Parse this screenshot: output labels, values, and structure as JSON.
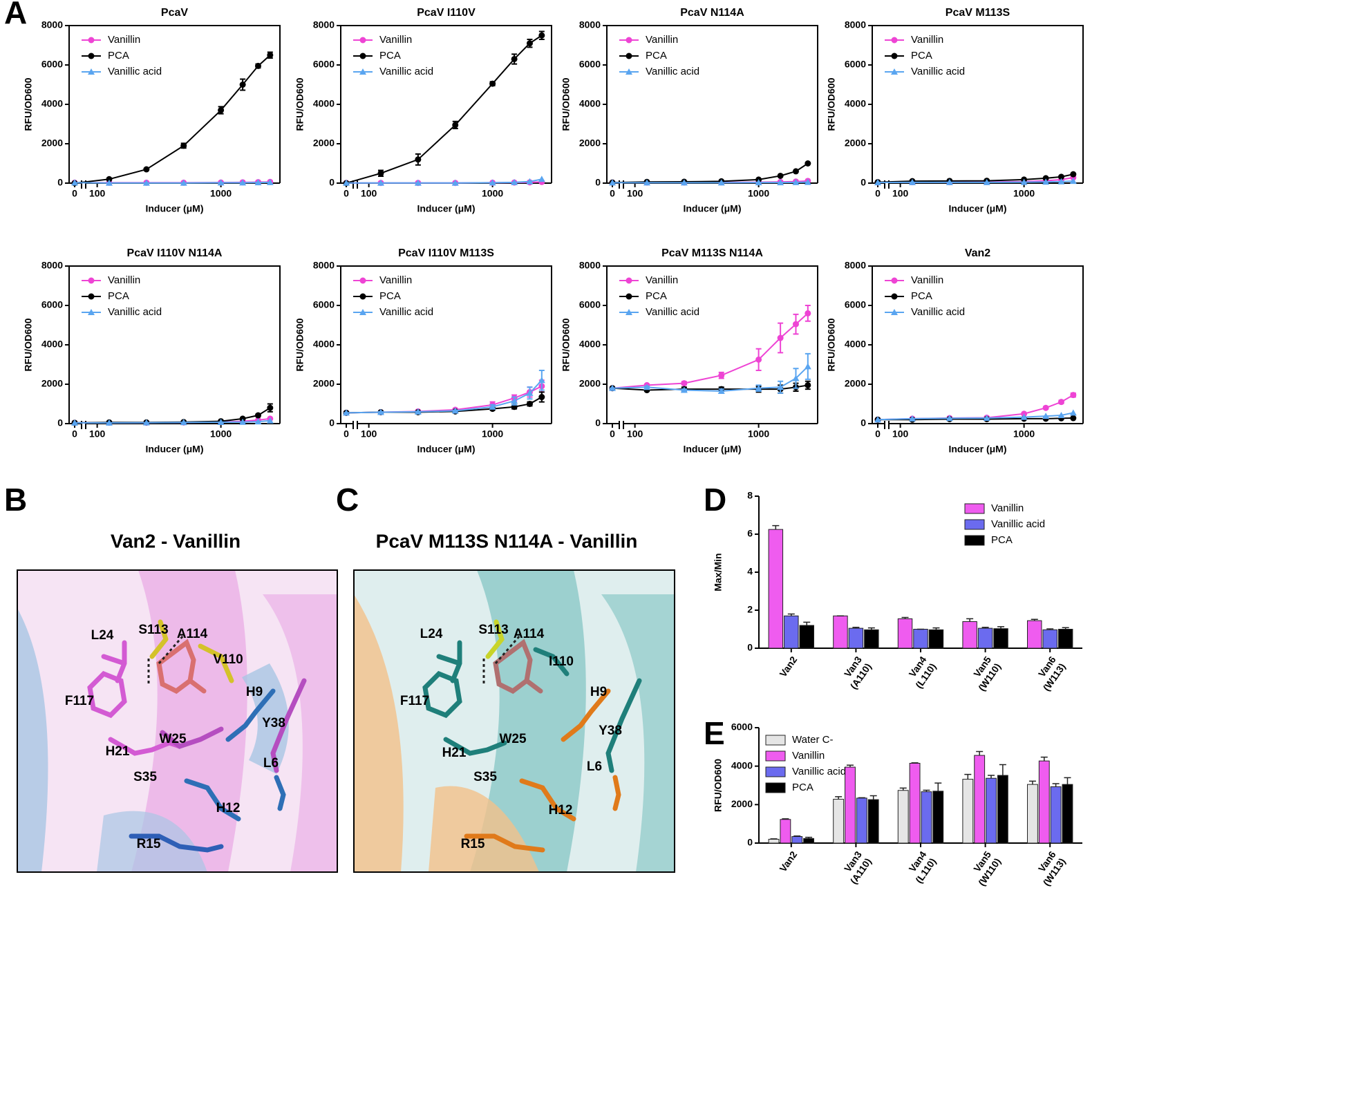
{
  "panel_labels": [
    "A",
    "B",
    "C",
    "D",
    "E"
  ],
  "chart_data": [
    {
      "type": "line",
      "title": "PcaV",
      "xlabel": "Inducer (μM)",
      "ylabel": "RFU/OD600",
      "xscale": "log",
      "x_break": true,
      "xlim": [
        0,
        3000
      ],
      "xticks": [
        0,
        100,
        1000
      ],
      "ylim": [
        0,
        8000
      ],
      "yticks": [
        0,
        2000,
        4000,
        6000,
        8000
      ],
      "x": [
        0,
        125,
        250,
        500,
        1000,
        1500,
        2000,
        2500
      ],
      "series": [
        {
          "name": "Vanillin",
          "color": "#ee44d4",
          "marker": "circle",
          "values": [
            20,
            20,
            20,
            20,
            30,
            40,
            50,
            60
          ]
        },
        {
          "name": "PCA",
          "color": "#000000",
          "marker": "circle",
          "values": [
            0,
            200,
            700,
            1900,
            3700,
            5000,
            5950,
            6500
          ],
          "errors": [
            0,
            30,
            40,
            120,
            180,
            280,
            100,
            150
          ]
        },
        {
          "name": "Vanillic acid",
          "color": "#5aa5f0",
          "marker": "triangle",
          "values": [
            20,
            10,
            10,
            10,
            20,
            20,
            30,
            40
          ]
        }
      ]
    },
    {
      "type": "line",
      "title": "PcaV I110V",
      "xlabel": "Inducer (μM)",
      "ylabel": "RFU/OD600",
      "xscale": "log",
      "x_break": true,
      "xlim": [
        0,
        3000
      ],
      "xticks": [
        0,
        100,
        1000
      ],
      "ylim": [
        0,
        8000
      ],
      "yticks": [
        0,
        2000,
        4000,
        6000,
        8000
      ],
      "x": [
        0,
        125,
        250,
        500,
        1000,
        1500,
        2000,
        2500
      ],
      "series": [
        {
          "name": "Vanillin",
          "color": "#ee44d4",
          "marker": "circle",
          "values": [
            10,
            10,
            10,
            10,
            20,
            30,
            40,
            60
          ]
        },
        {
          "name": "PCA",
          "color": "#000000",
          "marker": "circle",
          "values": [
            0,
            500,
            1200,
            2950,
            5050,
            6300,
            7100,
            7500
          ],
          "errors": [
            0,
            150,
            280,
            180,
            100,
            250,
            200,
            200
          ]
        },
        {
          "name": "Vanillic acid",
          "color": "#5aa5f0",
          "marker": "triangle",
          "values": [
            10,
            10,
            10,
            10,
            20,
            40,
            80,
            200
          ]
        }
      ]
    },
    {
      "type": "line",
      "title": "PcaV N114A",
      "xlabel": "Inducer (μM)",
      "ylabel": "RFU/OD600",
      "xscale": "log",
      "x_break": true,
      "xlim": [
        0,
        3000
      ],
      "xticks": [
        0,
        100,
        1000
      ],
      "ylim": [
        0,
        8000
      ],
      "yticks": [
        0,
        2000,
        4000,
        6000,
        8000
      ],
      "x": [
        0,
        125,
        250,
        500,
        1000,
        1500,
        2000,
        2500
      ],
      "series": [
        {
          "name": "Vanillin",
          "color": "#ee44d4",
          "marker": "circle",
          "values": [
            30,
            30,
            30,
            40,
            50,
            60,
            80,
            110
          ]
        },
        {
          "name": "PCA",
          "color": "#000000",
          "marker": "circle",
          "values": [
            30,
            60,
            70,
            90,
            180,
            370,
            600,
            1000
          ]
        },
        {
          "name": "Vanillic acid",
          "color": "#5aa5f0",
          "marker": "triangle",
          "values": [
            20,
            20,
            20,
            20,
            30,
            30,
            40,
            50
          ]
        }
      ]
    },
    {
      "type": "line",
      "title": "PcaV M113S",
      "xlabel": "Inducer (μM)",
      "ylabel": "RFU/OD600",
      "xscale": "log",
      "x_break": true,
      "xlim": [
        0,
        3000
      ],
      "xticks": [
        0,
        100,
        1000
      ],
      "ylim": [
        0,
        8000
      ],
      "yticks": [
        0,
        2000,
        4000,
        6000,
        8000
      ],
      "x": [
        0,
        125,
        250,
        500,
        1000,
        1500,
        2000,
        2500
      ],
      "series": [
        {
          "name": "Vanillin",
          "color": "#ee44d4",
          "marker": "circle",
          "values": [
            40,
            50,
            50,
            60,
            80,
            120,
            180,
            280
          ]
        },
        {
          "name": "PCA",
          "color": "#000000",
          "marker": "circle",
          "values": [
            50,
            100,
            110,
            120,
            180,
            250,
            320,
            450
          ]
        },
        {
          "name": "Vanillic acid",
          "color": "#5aa5f0",
          "marker": "triangle",
          "values": [
            30,
            40,
            40,
            40,
            50,
            60,
            80,
            100
          ]
        }
      ]
    },
    {
      "type": "line",
      "title": "PcaV I110V N114A",
      "xlabel": "Inducer (μM)",
      "ylabel": "RFU/OD600",
      "xscale": "log",
      "x_break": true,
      "xlim": [
        0,
        3000
      ],
      "xticks": [
        0,
        100,
        1000
      ],
      "ylim": [
        0,
        8000
      ],
      "yticks": [
        0,
        2000,
        4000,
        6000,
        8000
      ],
      "x": [
        0,
        125,
        250,
        500,
        1000,
        1500,
        2000,
        2500
      ],
      "series": [
        {
          "name": "Vanillin",
          "color": "#ee44d4",
          "marker": "circle",
          "values": [
            40,
            50,
            50,
            60,
            80,
            120,
            180,
            250
          ]
        },
        {
          "name": "PCA",
          "color": "#000000",
          "marker": "circle",
          "values": [
            40,
            60,
            60,
            80,
            120,
            250,
            420,
            800
          ],
          "errors": [
            0,
            0,
            0,
            0,
            20,
            40,
            60,
            200
          ]
        },
        {
          "name": "Vanillic acid",
          "color": "#5aa5f0",
          "marker": "triangle",
          "values": [
            40,
            40,
            50,
            60,
            70,
            80,
            100,
            150
          ]
        }
      ]
    },
    {
      "type": "line",
      "title": "PcaV I110V M113S",
      "xlabel": "Inducer (μM)",
      "ylabel": "RFU/OD600",
      "xscale": "log",
      "x_break": true,
      "xlim": [
        0,
        3000
      ],
      "xticks": [
        0,
        100,
        1000
      ],
      "ylim": [
        0,
        8000
      ],
      "yticks": [
        0,
        2000,
        4000,
        6000,
        8000
      ],
      "x": [
        0,
        125,
        250,
        500,
        1000,
        1500,
        2000,
        2500
      ],
      "series": [
        {
          "name": "Vanillin",
          "color": "#ee44d4",
          "marker": "circle",
          "values": [
            550,
            580,
            620,
            700,
            950,
            1300,
            1600,
            1900
          ],
          "errors": [
            0,
            20,
            30,
            50,
            150,
            150,
            250,
            300
          ]
        },
        {
          "name": "PCA",
          "color": "#000000",
          "marker": "circle",
          "values": [
            550,
            580,
            580,
            620,
            750,
            850,
            1000,
            1350
          ],
          "errors": [
            0,
            20,
            20,
            30,
            60,
            100,
            100,
            250
          ]
        },
        {
          "name": "Vanillic acid",
          "color": "#5aa5f0",
          "marker": "triangle",
          "values": [
            550,
            580,
            600,
            650,
            850,
            1150,
            1550,
            2200
          ],
          "errors": [
            0,
            20,
            20,
            30,
            100,
            200,
            300,
            500
          ]
        }
      ]
    },
    {
      "type": "line",
      "title": "PcaV M113S N114A",
      "xlabel": "Inducer (μM)",
      "ylabel": "RFU/OD600",
      "xscale": "log",
      "x_break": true,
      "xlim": [
        0,
        3000
      ],
      "xticks": [
        0,
        100,
        1000
      ],
      "ylim": [
        0,
        8000
      ],
      "yticks": [
        0,
        2000,
        4000,
        6000,
        8000
      ],
      "x": [
        0,
        125,
        250,
        500,
        1000,
        1500,
        2000,
        2500
      ],
      "series": [
        {
          "name": "Vanillin",
          "color": "#ee44d4",
          "marker": "circle",
          "values": [
            1800,
            1950,
            2050,
            2450,
            3250,
            4350,
            5050,
            5600
          ],
          "errors": [
            0,
            50,
            80,
            150,
            550,
            750,
            500,
            400
          ]
        },
        {
          "name": "PCA",
          "color": "#000000",
          "marker": "circle",
          "values": [
            1800,
            1700,
            1750,
            1750,
            1750,
            1750,
            1850,
            1950
          ],
          "errors": [
            0,
            50,
            100,
            100,
            150,
            200,
            200,
            200
          ]
        },
        {
          "name": "Vanillic acid",
          "color": "#5aa5f0",
          "marker": "triangle",
          "values": [
            1800,
            1850,
            1700,
            1650,
            1800,
            1850,
            2300,
            2900
          ],
          "errors": [
            0,
            50,
            50,
            100,
            150,
            300,
            500,
            650
          ]
        }
      ]
    },
    {
      "type": "line",
      "title": "Van2",
      "xlabel": "Inducer (μM)",
      "ylabel": "RFU/OD600",
      "xscale": "log",
      "x_break": true,
      "xlim": [
        0,
        3000
      ],
      "xticks": [
        0,
        100,
        1000
      ],
      "ylim": [
        0,
        8000
      ],
      "yticks": [
        0,
        2000,
        4000,
        6000,
        8000
      ],
      "x": [
        0,
        125,
        250,
        500,
        1000,
        1500,
        2000,
        2500
      ],
      "series": [
        {
          "name": "Vanillin",
          "color": "#ee44d4",
          "marker": "circle",
          "values": [
            200,
            250,
            280,
            300,
            500,
            800,
            1100,
            1450
          ],
          "errors": [
            0,
            20,
            20,
            30,
            40,
            60,
            80,
            100
          ]
        },
        {
          "name": "PCA",
          "color": "#000000",
          "marker": "circle",
          "values": [
            200,
            200,
            230,
            230,
            250,
            250,
            270,
            280
          ]
        },
        {
          "name": "Vanillic acid",
          "color": "#5aa5f0",
          "marker": "triangle",
          "values": [
            200,
            250,
            270,
            280,
            330,
            380,
            420,
            550
          ]
        }
      ]
    },
    {
      "type": "bar",
      "ylabel": "Max/Min",
      "ylim": [
        0,
        8
      ],
      "yticks": [
        0,
        2,
        4,
        6,
        8
      ],
      "legend": "upper right",
      "categories": [
        [
          "Van2"
        ],
        [
          "Van3",
          "(A110)"
        ],
        [
          "Van4",
          "(L110)"
        ],
        [
          "Van5",
          "(W110)"
        ],
        [
          "Van6",
          "(W113)"
        ]
      ],
      "series": [
        {
          "name": "Vanillin",
          "color": "#ef5cef",
          "values": [
            6.25,
            1.7,
            1.55,
            1.4,
            1.45
          ],
          "errors": [
            0.2,
            0,
            0.07,
            0.15,
            0.07
          ]
        },
        {
          "name": "Vanillic acid",
          "color": "#6b6bef",
          "values": [
            1.7,
            1.05,
            1.0,
            1.05,
            0.97
          ],
          "errors": [
            0.1,
            0.05,
            0,
            0.05,
            0.05
          ]
        },
        {
          "name": "PCA",
          "color": "#000000",
          "values": [
            1.2,
            0.97,
            0.97,
            1.03,
            1.0
          ],
          "errors": [
            0.17,
            0.1,
            0.1,
            0.1,
            0.08
          ]
        }
      ]
    },
    {
      "type": "bar",
      "ylabel": "RFU/OD600",
      "ylim": [
        0,
        6000
      ],
      "yticks": [
        0,
        2000,
        4000,
        6000
      ],
      "legend": "upper left",
      "categories": [
        [
          "Van2"
        ],
        [
          "Van3",
          "(A110)"
        ],
        [
          "Van4",
          "(L110)"
        ],
        [
          "Van5",
          "(W110)"
        ],
        [
          "Van6",
          "(W113)"
        ]
      ],
      "series": [
        {
          "name": "Water C-",
          "color": "#e5e5e5",
          "values": [
            200,
            2280,
            2740,
            3320,
            3050
          ],
          "errors": [
            20,
            130,
            120,
            250,
            170
          ]
        },
        {
          "name": "Vanillin",
          "color": "#ef5cef",
          "values": [
            1230,
            3950,
            4150,
            4560,
            4270
          ],
          "errors": [
            30,
            100,
            20,
            200,
            200
          ]
        },
        {
          "name": "Vanillic acid",
          "color": "#6b6bef",
          "values": [
            340,
            2340,
            2670,
            3370,
            2930
          ],
          "errors": [
            30,
            20,
            80,
            150,
            160
          ]
        },
        {
          "name": "PCA",
          "color": "#000000",
          "values": [
            240,
            2260,
            2700,
            3520,
            3050
          ],
          "errors": [
            60,
            200,
            420,
            560,
            350
          ]
        }
      ]
    }
  ],
  "structures": [
    {
      "title": "Van2 - Vanillin",
      "labels": [
        "L24",
        "S113",
        "A114",
        "V110",
        "F117",
        "H9",
        "Y38",
        "H21",
        "W25",
        "L6",
        "S35",
        "H12",
        "R15"
      ]
    },
    {
      "title": "PcaV M113S N114A - Vanillin",
      "labels": [
        "L24",
        "S113",
        "A114",
        "I110",
        "F117",
        "H9",
        "Y38",
        "H21",
        "W25",
        "L6",
        "S35",
        "H12",
        "R15"
      ]
    }
  ]
}
